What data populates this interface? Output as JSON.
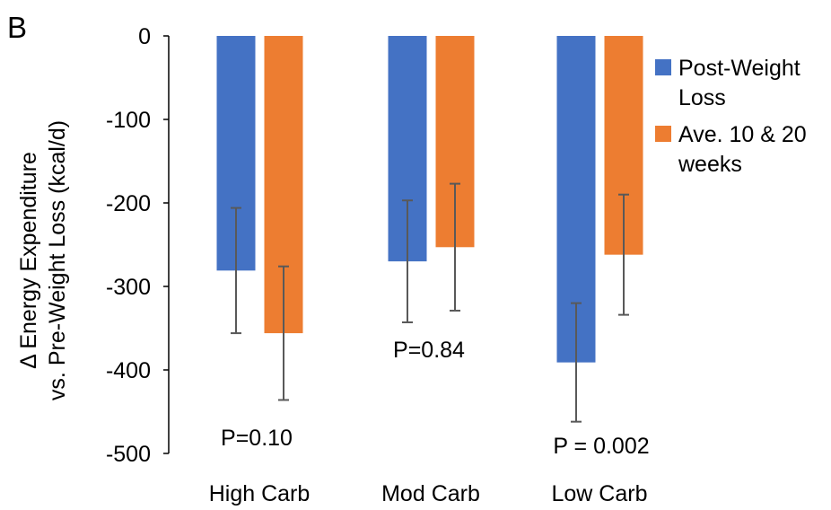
{
  "panel_label": "B",
  "chart_data": {
    "type": "bar",
    "categories": [
      "High Carb",
      "Mod Carb",
      "Low Carb"
    ],
    "series": [
      {
        "name": "Post-Weight Loss",
        "color": "#4472C4",
        "values": [
          -281,
          -270,
          -391
        ],
        "errors": [
          75,
          73,
          71
        ]
      },
      {
        "name": "Ave. 10 & 20 weeks",
        "color": "#ED7D31",
        "values": [
          -356,
          -253,
          -262
        ],
        "errors": [
          80,
          76,
          72
        ]
      }
    ],
    "legend_lines": [
      [
        "Post-Weight",
        "Loss"
      ],
      [
        "Ave. 10 & 20",
        "weeks"
      ]
    ],
    "ylabel_lines": [
      "Δ Energy Expenditure",
      "vs. Pre-Weight Loss (kcal/d)"
    ],
    "xlabel": "",
    "ylim": [
      -500,
      0
    ],
    "yticks": [
      0,
      -100,
      -200,
      -300,
      -400,
      -500
    ],
    "ytick_labels": [
      "0",
      "-100",
      "-200",
      "-300",
      "-400",
      "-500"
    ],
    "grid": false,
    "legend_position": "right",
    "error_bar_color": "#595959",
    "annotations": [
      "P=0.10",
      "P=0.84",
      "P = 0.002"
    ]
  }
}
